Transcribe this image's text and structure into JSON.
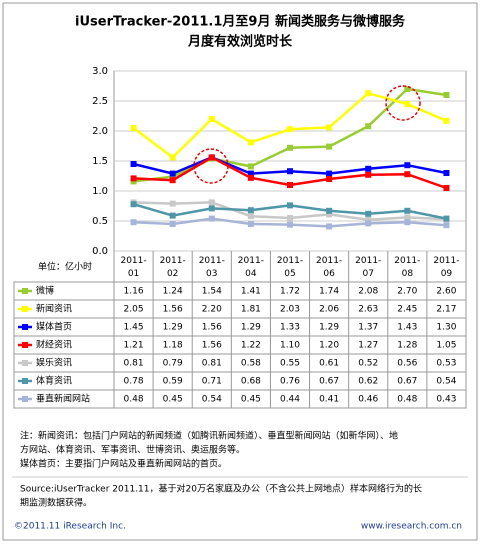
{
  "chart_data": {
    "type": "line",
    "title": [
      "iUserTracker-2011.1月至9月 新闻类服务与微博服务",
      "月度有效浏览时长"
    ],
    "unit": "单位：亿小时",
    "categories": [
      "2011-01",
      "2011-02",
      "2011-03",
      "2011-04",
      "2011-05",
      "2011-06",
      "2011-07",
      "2011-08",
      "2011-09"
    ],
    "ylim": [
      0,
      3
    ],
    "yticks": [
      {
        "value": 0,
        "label": "0.0"
      },
      {
        "value": 0.5,
        "label": "0.5"
      },
      {
        "value": 1,
        "label": "1.0"
      },
      {
        "value": 1.5,
        "label": "1.5"
      },
      {
        "value": 2,
        "label": "2.0"
      },
      {
        "value": 2.5,
        "label": "2.5"
      },
      {
        "value": 3,
        "label": "3.0"
      }
    ],
    "grid": true,
    "series": [
      {
        "name": "微博",
        "color": "#99cc33",
        "values": [
          1.16,
          1.24,
          1.54,
          1.41,
          1.72,
          1.74,
          2.08,
          2.7,
          2.6
        ],
        "value_labels": [
          "1.16",
          "1.24",
          "1.54",
          "1.41",
          "1.72",
          "1.74",
          "2.08",
          "2.70",
          "2.60"
        ]
      },
      {
        "name": "新闻资讯",
        "color": "#ffff00",
        "values": [
          2.05,
          1.56,
          2.2,
          1.81,
          2.03,
          2.06,
          2.63,
          2.45,
          2.17
        ],
        "value_labels": [
          "2.05",
          "1.56",
          "2.20",
          "1.81",
          "2.03",
          "2.06",
          "2.63",
          "2.45",
          "2.17"
        ]
      },
      {
        "name": "媒体首页",
        "color": "#0000ff",
        "values": [
          1.45,
          1.29,
          1.56,
          1.29,
          1.33,
          1.29,
          1.37,
          1.43,
          1.3
        ],
        "value_labels": [
          "1.45",
          "1.29",
          "1.56",
          "1.29",
          "1.33",
          "1.29",
          "1.37",
          "1.43",
          "1.30"
        ]
      },
      {
        "name": "财经资讯",
        "color": "#ff0000",
        "values": [
          1.21,
          1.18,
          1.56,
          1.22,
          1.1,
          1.2,
          1.27,
          1.28,
          1.05
        ],
        "value_labels": [
          "1.21",
          "1.18",
          "1.56",
          "1.22",
          "1.10",
          "1.20",
          "1.27",
          "1.28",
          "1.05"
        ]
      },
      {
        "name": "娱乐资讯",
        "color": "#c8c8c8",
        "values": [
          0.81,
          0.79,
          0.81,
          0.58,
          0.55,
          0.61,
          0.52,
          0.56,
          0.53
        ],
        "value_labels": [
          "0.81",
          "0.79",
          "0.81",
          "0.58",
          "0.55",
          "0.61",
          "0.52",
          "0.56",
          "0.53"
        ]
      },
      {
        "name": "体育资讯",
        "color": "#4f97a8",
        "values": [
          0.78,
          0.59,
          0.71,
          0.68,
          0.76,
          0.67,
          0.62,
          0.67,
          0.54
        ],
        "value_labels": [
          "0.78",
          "0.59",
          "0.71",
          "0.68",
          "0.76",
          "0.67",
          "0.62",
          "0.67",
          "0.54"
        ]
      },
      {
        "name": "垂直新闻网站",
        "color": "#a6b4d8",
        "values": [
          0.48,
          0.45,
          0.54,
          0.45,
          0.44,
          0.41,
          0.46,
          0.48,
          0.43
        ],
        "value_labels": [
          "0.48",
          "0.45",
          "0.54",
          "0.45",
          "0.44",
          "0.41",
          "0.46",
          "0.48",
          "0.43"
        ]
      }
    ]
  },
  "notes": [
    "注：新闻资讯：包括门户网站的新闻频道（如腾讯新闻频道）、垂直型新闻网站（如新华网）、地",
    "方网站、体育资讯、军事资讯、世博资讯、奥运服务等。",
    "媒体首页：主要指门户网站及垂直新闻网站的首页。"
  ],
  "source": [
    "Source:iUserTracker 2011.11，基于对20万名家庭及办公（不含公共上网地点）样本网络行为的长",
    "期监测数据获得。"
  ],
  "footer": {
    "copyright": "©2011.11 iResearch Inc.",
    "website": "www.iresearch.com.cn"
  }
}
